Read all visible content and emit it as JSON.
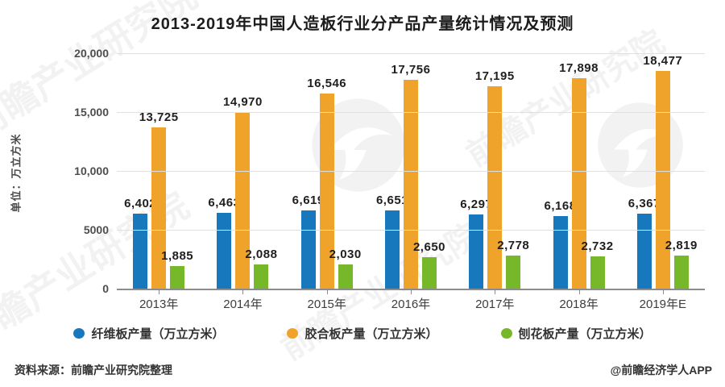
{
  "title": "2013-2019年中国人造板行业分产品产量统计情况及预测",
  "y_axis": {
    "unit_label": "单位：万立方米",
    "ticks": [
      {
        "value": 0,
        "label": "0"
      },
      {
        "value": 5000,
        "label": "5000"
      },
      {
        "value": 10000,
        "label": "10,000"
      },
      {
        "value": 15000,
        "label": "15,000"
      },
      {
        "value": 20000,
        "label": "20,000"
      }
    ]
  },
  "chart_data": {
    "type": "bar",
    "title": "2013-2019年中国人造板行业分产品产量统计情况及预测",
    "categories": [
      "2013年",
      "2014年",
      "2015年",
      "2016年",
      "2017年",
      "2018年",
      "2019年E"
    ],
    "series": [
      {
        "name": "纤维板产量（万立方米）",
        "color": "#1878BE",
        "values": [
          6402,
          6463,
          6619,
          6651,
          6297,
          6168,
          6367
        ],
        "labels": [
          "6,402",
          "6,463",
          "6,619",
          "6,651",
          "6,297",
          "6,168",
          "6,367"
        ]
      },
      {
        "name": "胶合板产量（万立方米）",
        "color": "#F0A32A",
        "values": [
          13725,
          14970,
          16546,
          17756,
          17195,
          17898,
          18477
        ],
        "labels": [
          "13,725",
          "14,970",
          "16,546",
          "17,756",
          "17,195",
          "17,898",
          "18,477"
        ]
      },
      {
        "name": "刨花板产量（万立方米）",
        "color": "#76B82A",
        "values": [
          1885,
          2088,
          2030,
          2650,
          2778,
          2732,
          2819
        ],
        "labels": [
          "1,885",
          "2,088",
          "2,030",
          "2,650",
          "2,778",
          "2,732",
          "2,819"
        ]
      }
    ],
    "xlabel": "",
    "ylabel": "单位：万立方米",
    "ylim": [
      0,
      20000
    ],
    "grid": true,
    "legend_position": "bottom"
  },
  "footer": {
    "source": "资料来源：前瞻产业研究院整理",
    "credit": "@前瞻经济学人APP"
  },
  "watermark": {
    "text": "前瞻产业研究院",
    "logo_text": "前瞻"
  }
}
